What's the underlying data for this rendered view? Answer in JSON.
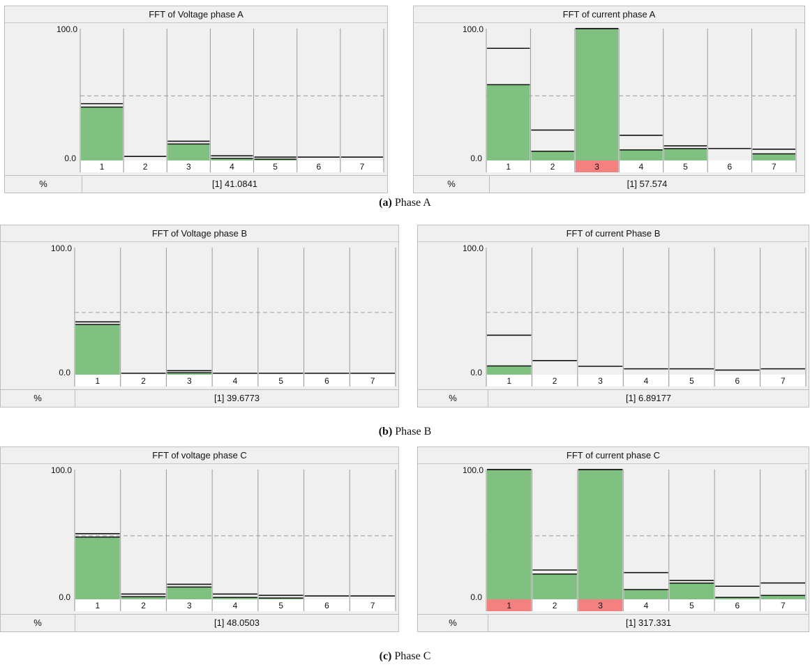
{
  "chart_data": [
    {
      "type": "bar",
      "title": "FFT of Voltage phase A",
      "categories": [
        "1",
        "2",
        "3",
        "4",
        "5",
        "6",
        "7"
      ],
      "values": [
        40.5,
        0,
        12.5,
        1.5,
        1,
        0,
        0
      ],
      "limits": [
        42,
        2,
        13.5,
        2.5,
        1.5,
        1.5,
        1.5
      ],
      "alarm": [
        false,
        false,
        false,
        false,
        false,
        false,
        false
      ],
      "ylim": [
        0,
        100
      ],
      "y_ticks": [
        "100.0",
        "0.0"
      ],
      "reference": 49,
      "unit": "%",
      "readout": "[1]  41.0841"
    },
    {
      "type": "bar",
      "title": "FFT of current phase A",
      "categories": [
        "1",
        "2",
        "3",
        "4",
        "5",
        "6",
        "7"
      ],
      "values": [
        57.5,
        7,
        100,
        8,
        9,
        0,
        5
      ],
      "limits": [
        84,
        22,
        100,
        18,
        10,
        8,
        7.5
      ],
      "alarm": [
        false,
        false,
        true,
        false,
        false,
        false,
        false
      ],
      "ylim": [
        0,
        100
      ],
      "y_ticks": [
        "100.0",
        "0.0"
      ],
      "reference": 49,
      "unit": "%",
      "readout": "[1]  57.574"
    },
    {
      "type": "bar",
      "title": "FFT of Voltage phase B",
      "categories": [
        "1",
        "2",
        "3",
        "4",
        "5",
        "6",
        "7"
      ],
      "values": [
        39.5,
        0,
        1.5,
        0,
        0,
        0,
        0
      ],
      "limits": [
        40.5,
        0,
        2,
        0,
        0,
        0,
        0
      ],
      "alarm": [
        false,
        false,
        false,
        false,
        false,
        false,
        false
      ],
      "ylim": [
        0,
        100
      ],
      "y_ticks": [
        "100.0",
        "0.0"
      ],
      "reference": 49,
      "unit": "%",
      "readout": "[1]  39.6773"
    },
    {
      "type": "bar",
      "title": "FFT of current Phase B",
      "categories": [
        "1",
        "2",
        "3",
        "4",
        "5",
        "6",
        "7"
      ],
      "values": [
        6.9,
        0,
        0,
        0,
        0,
        0,
        0
      ],
      "limits": [
        30,
        10,
        5.5,
        3.5,
        3.5,
        2.5,
        3.5
      ],
      "alarm": [
        false,
        false,
        false,
        false,
        false,
        false,
        false
      ],
      "ylim": [
        0,
        100
      ],
      "y_ticks": [
        "100.0",
        "0.0"
      ],
      "reference": 49,
      "unit": "%",
      "readout": "[1]  6.89177"
    },
    {
      "type": "bar",
      "title": "FFT of voltage phase C",
      "categories": [
        "1",
        "2",
        "3",
        "4",
        "5",
        "6",
        "7"
      ],
      "values": [
        48,
        2,
        9.5,
        1.5,
        1,
        0,
        0
      ],
      "limits": [
        49.5,
        3,
        10.5,
        3,
        2,
        1.5,
        1.5
      ],
      "alarm": [
        false,
        false,
        false,
        false,
        false,
        false,
        false
      ],
      "ylim": [
        0,
        100
      ],
      "y_ticks": [
        "100.0",
        "0.0"
      ],
      "reference": 49,
      "unit": "%",
      "readout": "[1]  48.0503"
    },
    {
      "type": "bar",
      "title": "FFT of current phase C",
      "categories": [
        "1",
        "2",
        "3",
        "4",
        "5",
        "6",
        "7"
      ],
      "values": [
        100,
        19.5,
        100,
        7.5,
        12.5,
        1.5,
        3
      ],
      "limits": [
        100,
        21.5,
        100,
        19.5,
        13.5,
        9,
        11.5
      ],
      "alarm": [
        true,
        false,
        true,
        false,
        false,
        false,
        false
      ],
      "ylim": [
        0,
        100
      ],
      "y_ticks": [
        "100.0",
        "0.0"
      ],
      "reference": 49,
      "unit": "%",
      "readout": "[1]  317.331"
    }
  ],
  "captions": [
    {
      "letter": "(a)",
      "text": " Phase A"
    },
    {
      "letter": "(b)",
      "text": " Phase B"
    },
    {
      "letter": "(c)",
      "text": " Phase C"
    }
  ],
  "colors": {
    "bar": "#80c080",
    "alarm": "#f58080",
    "limit_line": "#111111",
    "reference_line": "#a8a8a8"
  }
}
